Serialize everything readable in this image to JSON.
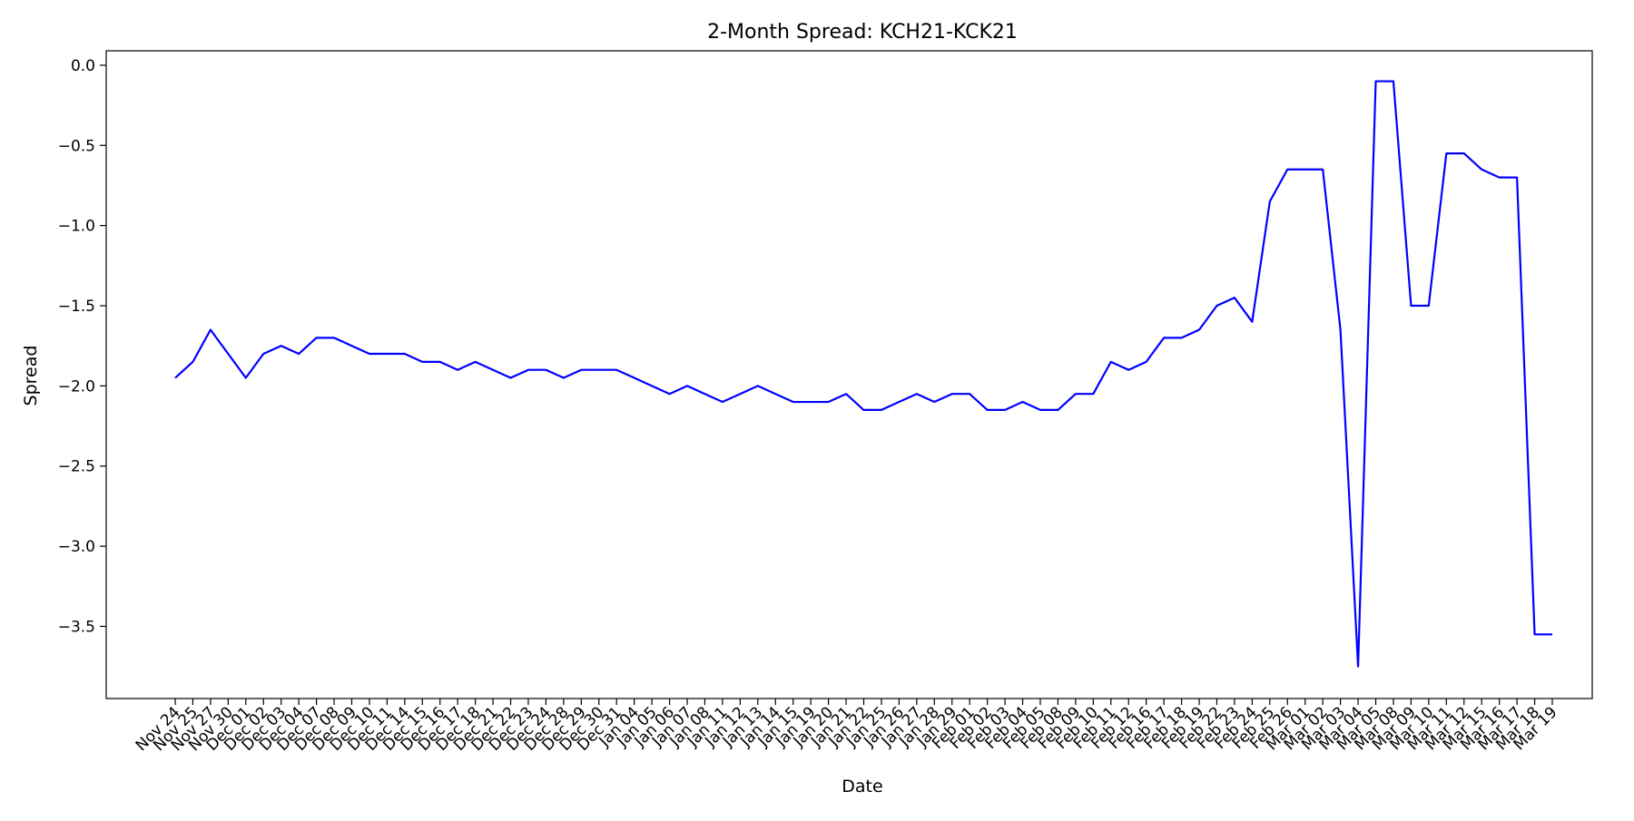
{
  "chart_data": {
    "type": "line",
    "title": "2-Month Spread: KCH21-KCK21",
    "xlabel": "Date",
    "ylabel": "Spread",
    "ylim": [
      -3.95,
      0.09
    ],
    "yticks": [
      "0.0",
      "−0.5",
      "−1.0",
      "−1.5",
      "−2.0",
      "−2.5",
      "−3.0",
      "−3.5"
    ],
    "ytick_values": [
      0.0,
      -0.5,
      -1.0,
      -1.5,
      -2.0,
      -2.5,
      -3.0,
      -3.5
    ],
    "grid": false,
    "legend": "none",
    "line_color": "#0000ff",
    "categories": [
      "Nov 24",
      "Nov 25",
      "Nov 27",
      "Nov 30",
      "Dec 01",
      "Dec 02",
      "Dec 03",
      "Dec 04",
      "Dec 07",
      "Dec 08",
      "Dec 09",
      "Dec 10",
      "Dec 11",
      "Dec 14",
      "Dec 15",
      "Dec 16",
      "Dec 17",
      "Dec 18",
      "Dec 21",
      "Dec 22",
      "Dec 23",
      "Dec 24",
      "Dec 28",
      "Dec 29",
      "Dec 30",
      "Dec 31",
      "Jan 04",
      "Jan 05",
      "Jan 06",
      "Jan 07",
      "Jan 08",
      "Jan 11",
      "Jan 12",
      "Jan 13",
      "Jan 14",
      "Jan 15",
      "Jan 19",
      "Jan 20",
      "Jan 21",
      "Jan 22",
      "Jan 25",
      "Jan 26",
      "Jan 27",
      "Jan 28",
      "Jan 29",
      "Feb 01",
      "Feb 02",
      "Feb 03",
      "Feb 04",
      "Feb 05",
      "Feb 08",
      "Feb 09",
      "Feb 10",
      "Feb 11",
      "Feb 12",
      "Feb 16",
      "Feb 17",
      "Feb 18",
      "Feb 19",
      "Feb 22",
      "Feb 23",
      "Feb 24",
      "Feb 25",
      "Feb 26",
      "Mar 01",
      "Mar 02",
      "Mar 03",
      "Mar 04",
      "Mar 05",
      "Mar 08",
      "Mar 09",
      "Mar 10",
      "Mar 11",
      "Mar 12",
      "Mar 15",
      "Mar 16",
      "Mar 17",
      "Mar 18",
      "Mar 19"
    ],
    "series": [
      {
        "values": [
          -1.95,
          -1.85,
          -1.65,
          -1.8,
          -1.95,
          -1.8,
          -1.75,
          -1.8,
          -1.7,
          -1.7,
          -1.75,
          -1.8,
          -1.8,
          -1.8,
          -1.85,
          -1.85,
          -1.9,
          -1.85,
          -1.9,
          -1.95,
          -1.9,
          -1.9,
          -1.95,
          -1.9,
          -1.9,
          -1.9,
          -1.95,
          -2.0,
          -2.05,
          -2.0,
          -2.05,
          -2.1,
          -2.05,
          -2.0,
          -2.05,
          -2.1,
          -2.1,
          -2.1,
          -2.05,
          -2.15,
          -2.15,
          -2.1,
          -2.05,
          -2.1,
          -2.05,
          -2.05,
          -2.15,
          -2.15,
          -2.1,
          -2.15,
          -2.15,
          -2.05,
          -2.05,
          -1.85,
          -1.9,
          -1.85,
          -1.7,
          -1.7,
          -1.65,
          -1.5,
          -1.45,
          -1.6,
          -0.85,
          -0.65,
          -0.65,
          -0.65,
          -1.65,
          -3.75,
          -0.1,
          -0.1,
          -1.5,
          -1.5,
          -0.55,
          -0.55,
          -0.65,
          -0.7,
          -0.7,
          -3.55,
          -3.55
        ]
      }
    ]
  }
}
